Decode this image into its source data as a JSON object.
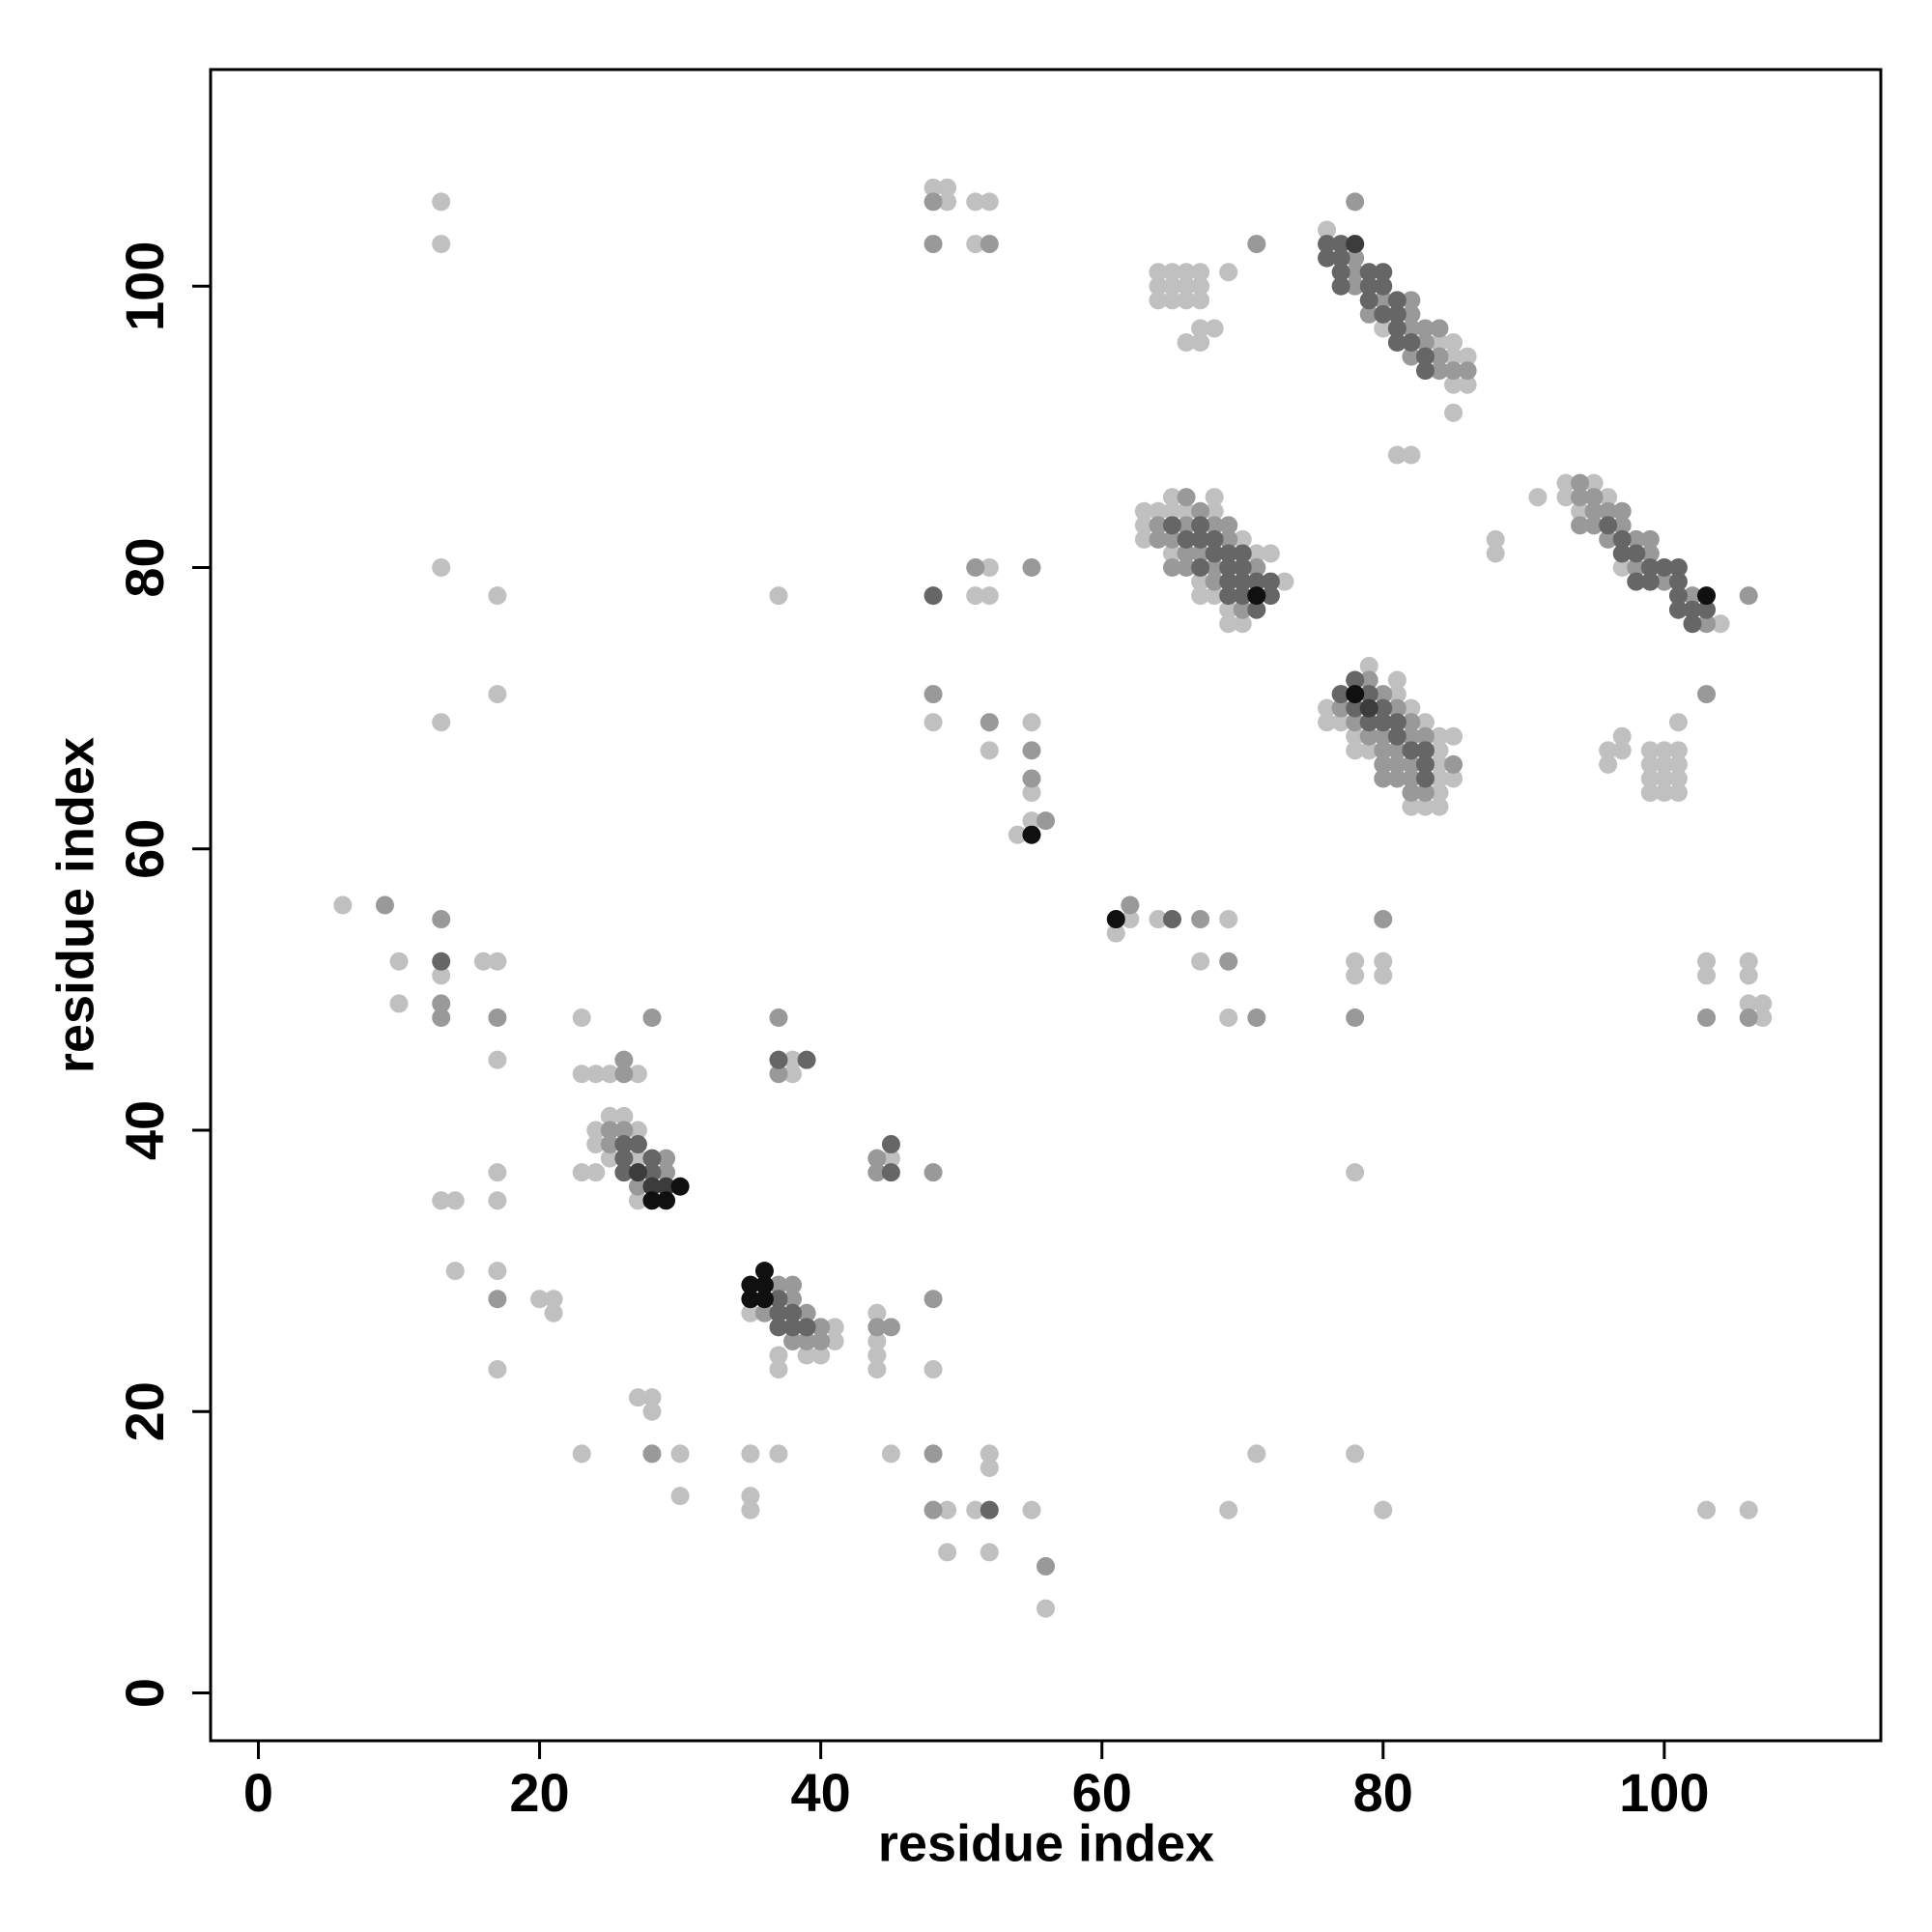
{
  "chart_data": {
    "type": "scatter",
    "xlabel": "residue index",
    "ylabel": "residue index",
    "xlim": [
      -3.4,
      115.4
    ],
    "ylim": [
      -3.4,
      115.4
    ],
    "xticks": [
      0,
      20,
      40,
      60,
      80,
      100
    ],
    "yticks": [
      0,
      20,
      40,
      60,
      80,
      100
    ],
    "series": [
      {
        "color": "#c0c0c0",
        "x": [
          13,
          13,
          13,
          17,
          17,
          13,
          6,
          10,
          16,
          17,
          13,
          10,
          17,
          23,
          23,
          24,
          25,
          27,
          25,
          26,
          24,
          27,
          24,
          25,
          27,
          23,
          24,
          27,
          13,
          14,
          17,
          17,
          14,
          17,
          20,
          21,
          21,
          17,
          27,
          28,
          28,
          23,
          30,
          30,
          35,
          35,
          35,
          37,
          35,
          41,
          41,
          37,
          39,
          40,
          37,
          38,
          38,
          45,
          37,
          44,
          44,
          44,
          44,
          48,
          45,
          49,
          51,
          52,
          52,
          49,
          52,
          55,
          56,
          48,
          49,
          49,
          51,
          52,
          51,
          52,
          51,
          52,
          48,
          52,
          55,
          55,
          54,
          55,
          61,
          62,
          64,
          69,
          67,
          69,
          64,
          65,
          66,
          67,
          64,
          65,
          66,
          67,
          64,
          65,
          66,
          67,
          69,
          67,
          68,
          66,
          67,
          63,
          63,
          63,
          64,
          65,
          65,
          65,
          66,
          67,
          67,
          68,
          68,
          68,
          69,
          69,
          70,
          70,
          71,
          72,
          73,
          71,
          69,
          78,
          80,
          78,
          78,
          78,
          80,
          80,
          76,
          80,
          84,
          85,
          85,
          86,
          85,
          86,
          85,
          81,
          82,
          88,
          88,
          91,
          93,
          93,
          94,
          95,
          96,
          97,
          104,
          96,
          97,
          97,
          96,
          101,
          99,
          100,
          101,
          99,
          100,
          101,
          99,
          100,
          101,
          99,
          100,
          101,
          76,
          76,
          77,
          78,
          78,
          79,
          79,
          81,
          81,
          82,
          82,
          83,
          83,
          84,
          84,
          84,
          84,
          84,
          84,
          85,
          85,
          103,
          103,
          106,
          106,
          106,
          107,
          107,
          103,
          106
        ],
        "values": [
          106,
          103,
          80,
          78,
          71,
          69,
          56,
          52,
          52,
          52,
          51,
          49,
          45,
          48,
          44,
          44,
          44,
          44,
          41,
          41,
          40,
          40,
          39,
          38,
          38,
          37,
          37,
          35,
          35,
          35,
          37,
          35,
          30,
          30,
          28,
          28,
          27,
          23,
          21,
          21,
          20,
          17,
          17,
          14,
          17,
          14,
          13,
          17,
          27,
          26,
          25,
          24,
          24,
          24,
          23,
          45,
          44,
          38,
          78,
          27,
          25,
          24,
          23,
          23,
          17,
          13,
          13,
          17,
          16,
          10,
          10,
          13,
          6,
          107,
          107,
          106,
          106,
          106,
          103,
          80,
          78,
          78,
          69,
          67,
          69,
          64,
          61,
          62,
          54,
          55,
          55,
          55,
          52,
          48,
          101,
          101,
          101,
          101,
          100,
          100,
          100,
          100,
          99,
          99,
          99,
          99,
          101,
          97,
          97,
          96,
          96,
          84,
          83,
          82,
          84,
          85,
          84,
          81,
          84,
          79,
          78,
          85,
          84,
          78,
          77,
          76,
          82,
          76,
          81,
          81,
          79,
          17,
          13,
          17,
          13,
          37,
          52,
          51,
          52,
          51,
          104,
          97,
          96,
          96,
          95,
          95,
          93,
          93,
          91,
          88,
          88,
          82,
          81,
          85,
          86,
          85,
          84,
          86,
          85,
          80,
          76,
          67,
          68,
          67,
          66,
          69,
          67,
          67,
          67,
          66,
          66,
          66,
          65,
          65,
          65,
          64,
          64,
          64,
          70,
          69,
          69,
          68,
          67,
          73,
          67,
          72,
          71,
          70,
          63,
          69,
          63,
          68,
          67,
          66,
          65,
          64,
          63,
          68,
          65,
          52,
          51,
          52,
          51,
          49,
          49,
          48,
          13,
          13
        ]
      },
      {
        "color": "#999999",
        "x": [
          9,
          13,
          13,
          13,
          17,
          28,
          26,
          26,
          25,
          26,
          25,
          29,
          29,
          27,
          17,
          28,
          37,
          38,
          38,
          36,
          39,
          40,
          38,
          39,
          40,
          37,
          37,
          44,
          44,
          48,
          44,
          45,
          48,
          48,
          48,
          56,
          48,
          48,
          52,
          51,
          55,
          48,
          52,
          55,
          55,
          56,
          62,
          67,
          69,
          71,
          71,
          64,
          64,
          65,
          65,
          66,
          66,
          66,
          66,
          67,
          67,
          68,
          68,
          68,
          69,
          69,
          70,
          71,
          78,
          80,
          78,
          78,
          78,
          78,
          80,
          82,
          79,
          82,
          82,
          83,
          84,
          83,
          82,
          84,
          84,
          85,
          86,
          94,
          94,
          94,
          95,
          95,
          95,
          96,
          96,
          97,
          97,
          98,
          98,
          99,
          99,
          100,
          102,
          103,
          106,
          103,
          77,
          78,
          79,
          79,
          80,
          80,
          80,
          80,
          80,
          81,
          81,
          81,
          81,
          82,
          82,
          82,
          82,
          82,
          83,
          83,
          85,
          103,
          106
        ],
        "values": [
          56,
          55,
          49,
          48,
          48,
          48,
          45,
          44,
          40,
          40,
          39,
          38,
          37,
          36,
          28,
          17,
          29,
          29,
          28,
          27,
          27,
          26,
          25,
          25,
          25,
          48,
          44,
          38,
          37,
          37,
          26,
          26,
          28,
          17,
          13,
          9,
          106,
          103,
          103,
          80,
          80,
          71,
          69,
          67,
          65,
          62,
          56,
          55,
          52,
          48,
          103,
          83,
          82,
          82,
          80,
          85,
          83,
          81,
          80,
          84,
          81,
          83,
          80,
          79,
          83,
          82,
          77,
          80,
          48,
          55,
          106,
          102,
          101,
          100,
          99,
          99,
          98,
          98,
          97,
          97,
          97,
          96,
          95,
          95,
          94,
          94,
          94,
          86,
          85,
          83,
          85,
          84,
          83,
          84,
          82,
          84,
          83,
          82,
          80,
          82,
          81,
          79,
          78,
          76,
          78,
          71,
          70,
          69,
          72,
          68,
          71,
          68,
          67,
          66,
          65,
          70,
          67,
          66,
          65,
          69,
          68,
          66,
          65,
          64,
          68,
          64,
          66,
          48,
          48
        ]
      },
      {
        "color": "#666666",
        "x": [
          13,
          26,
          27,
          26,
          28,
          26,
          28,
          37,
          37,
          38,
          37,
          38,
          39,
          37,
          39,
          45,
          45,
          52,
          48,
          65,
          65,
          66,
          67,
          67,
          67,
          68,
          68,
          69,
          69,
          69,
          69,
          70,
          70,
          70,
          70,
          71,
          71,
          72,
          72,
          76,
          77,
          76,
          77,
          77,
          79,
          80,
          77,
          79,
          80,
          79,
          81,
          80,
          81,
          81,
          81,
          82,
          83,
          83,
          96,
          97,
          97,
          98,
          98,
          99,
          99,
          100,
          101,
          101,
          101,
          101,
          102,
          102,
          103,
          77,
          78,
          78,
          79,
          79,
          80,
          80,
          81,
          81,
          82,
          83,
          83,
          83
        ],
        "values": [
          52,
          39,
          39,
          38,
          38,
          37,
          37,
          28,
          27,
          27,
          26,
          26,
          26,
          45,
          45,
          39,
          37,
          13,
          78,
          55,
          83,
          82,
          83,
          82,
          80,
          82,
          81,
          81,
          80,
          79,
          78,
          81,
          80,
          79,
          78,
          79,
          77,
          79,
          78,
          102,
          103,
          103,
          102,
          101,
          101,
          101,
          100,
          100,
          100,
          99,
          99,
          98,
          98,
          97,
          96,
          96,
          95,
          94,
          83,
          82,
          81,
          81,
          79,
          80,
          79,
          80,
          80,
          79,
          78,
          77,
          77,
          76,
          77,
          71,
          72,
          70,
          71,
          69,
          70,
          69,
          69,
          68,
          67,
          67,
          66,
          65
        ]
      },
      {
        "color": "#3c3c3c",
        "x": [
          27,
          28,
          29,
          78,
          79
        ],
        "values": [
          37,
          36,
          36,
          103,
          70
        ]
      },
      {
        "color": "#101010",
        "x": [
          30,
          28,
          29,
          35,
          36,
          36,
          35,
          36,
          55,
          61,
          71,
          78,
          103
        ],
        "values": [
          36,
          35,
          35,
          29,
          30,
          29,
          28,
          28,
          61,
          55,
          78,
          71,
          78
        ]
      }
    ]
  }
}
